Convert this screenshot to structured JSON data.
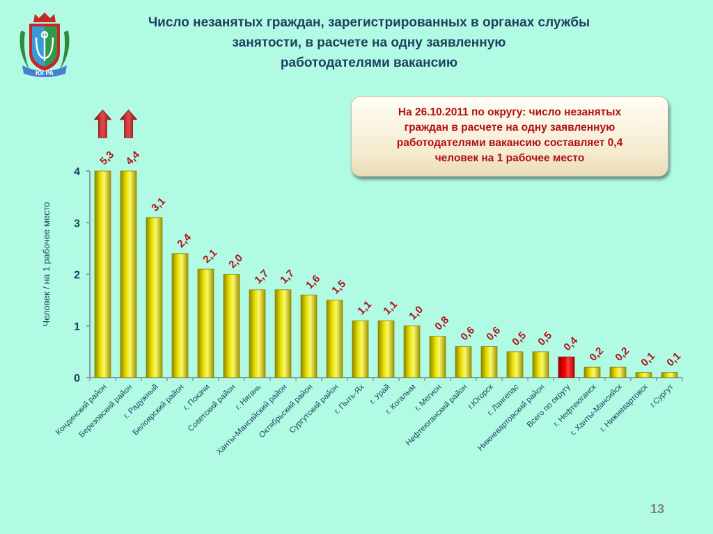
{
  "slide": {
    "title_lines": [
      "Число незанятых граждан, зарегистрированных в органах службы",
      "занятости, в расчете на одну заявленную",
      "работодателями вакансию"
    ],
    "callout_lines": [
      "На 26.10.2011 по округу: число незанятых",
      "граждан в расчете на одну заявленную",
      "работодателями вакансию составляет 0,4",
      "человек на 1 рабочее место"
    ],
    "page_number": "13",
    "logo": "coat-of-arms-icon",
    "logo_caption": "ЮГРА",
    "up_arrow_icon": "arrow-up-icon"
  },
  "chart_data": {
    "type": "bar",
    "title": "Число незанятых граждан, зарегистрированных в органах службы занятости, в расчете на одну заявленную работодателями вакансию",
    "xlabel": "",
    "ylabel": "Человек / на 1 рабочее место",
    "ylim": [
      0,
      4
    ],
    "yticks": [
      0,
      1,
      2,
      3,
      4
    ],
    "grid": false,
    "legend": "none",
    "categories": [
      "Кондинский район",
      "Березовский район",
      "г. Радужный",
      "Белоярский район",
      "г. Покачи",
      "Советский район",
      "г. Нягань",
      "Ханты-Мансийский район",
      "Октябрьский район",
      "Сургутский район",
      "г. Пыть-Ях",
      "г. Урай",
      "г. Когалым",
      "г. Мегион",
      "Нефтеюганский район",
      "г.Югорск",
      "г. Лангепас",
      "Нижневартовский район",
      "Всего по округу",
      "г. Нефтеюганск",
      "г. Ханты-Мансийск",
      "г. Нижневартовск",
      "г.Сургут"
    ],
    "values": [
      5.3,
      4.4,
      3.1,
      2.4,
      2.1,
      2.0,
      1.7,
      1.7,
      1.6,
      1.5,
      1.1,
      1.1,
      1.0,
      0.8,
      0.6,
      0.6,
      0.5,
      0.5,
      0.4,
      0.2,
      0.2,
      0.1,
      0.1
    ],
    "data_labels": [
      "5,3",
      "4,4",
      "3,1",
      "2,4",
      "2,1",
      "2,0",
      "1,7",
      "1,7",
      "1,6",
      "1,5",
      "1,1",
      "1,1",
      "1,0",
      "0,8",
      "0,6",
      "0,6",
      "0,5",
      "0,5",
      "0,4",
      "0,2",
      "0,2",
      "0,1",
      "0,1"
    ],
    "highlight_category": "Всего по округу",
    "overflow_marked_categories": [
      "Кондинский район",
      "Березовский район"
    ],
    "colors": {
      "bar": "#e8e000",
      "bar_highlight": "#ee0000",
      "data_label": "#b01018",
      "axis": "#8a9a9a",
      "axis_text": "#1f3f5f",
      "arrow": "#c0282a"
    }
  }
}
